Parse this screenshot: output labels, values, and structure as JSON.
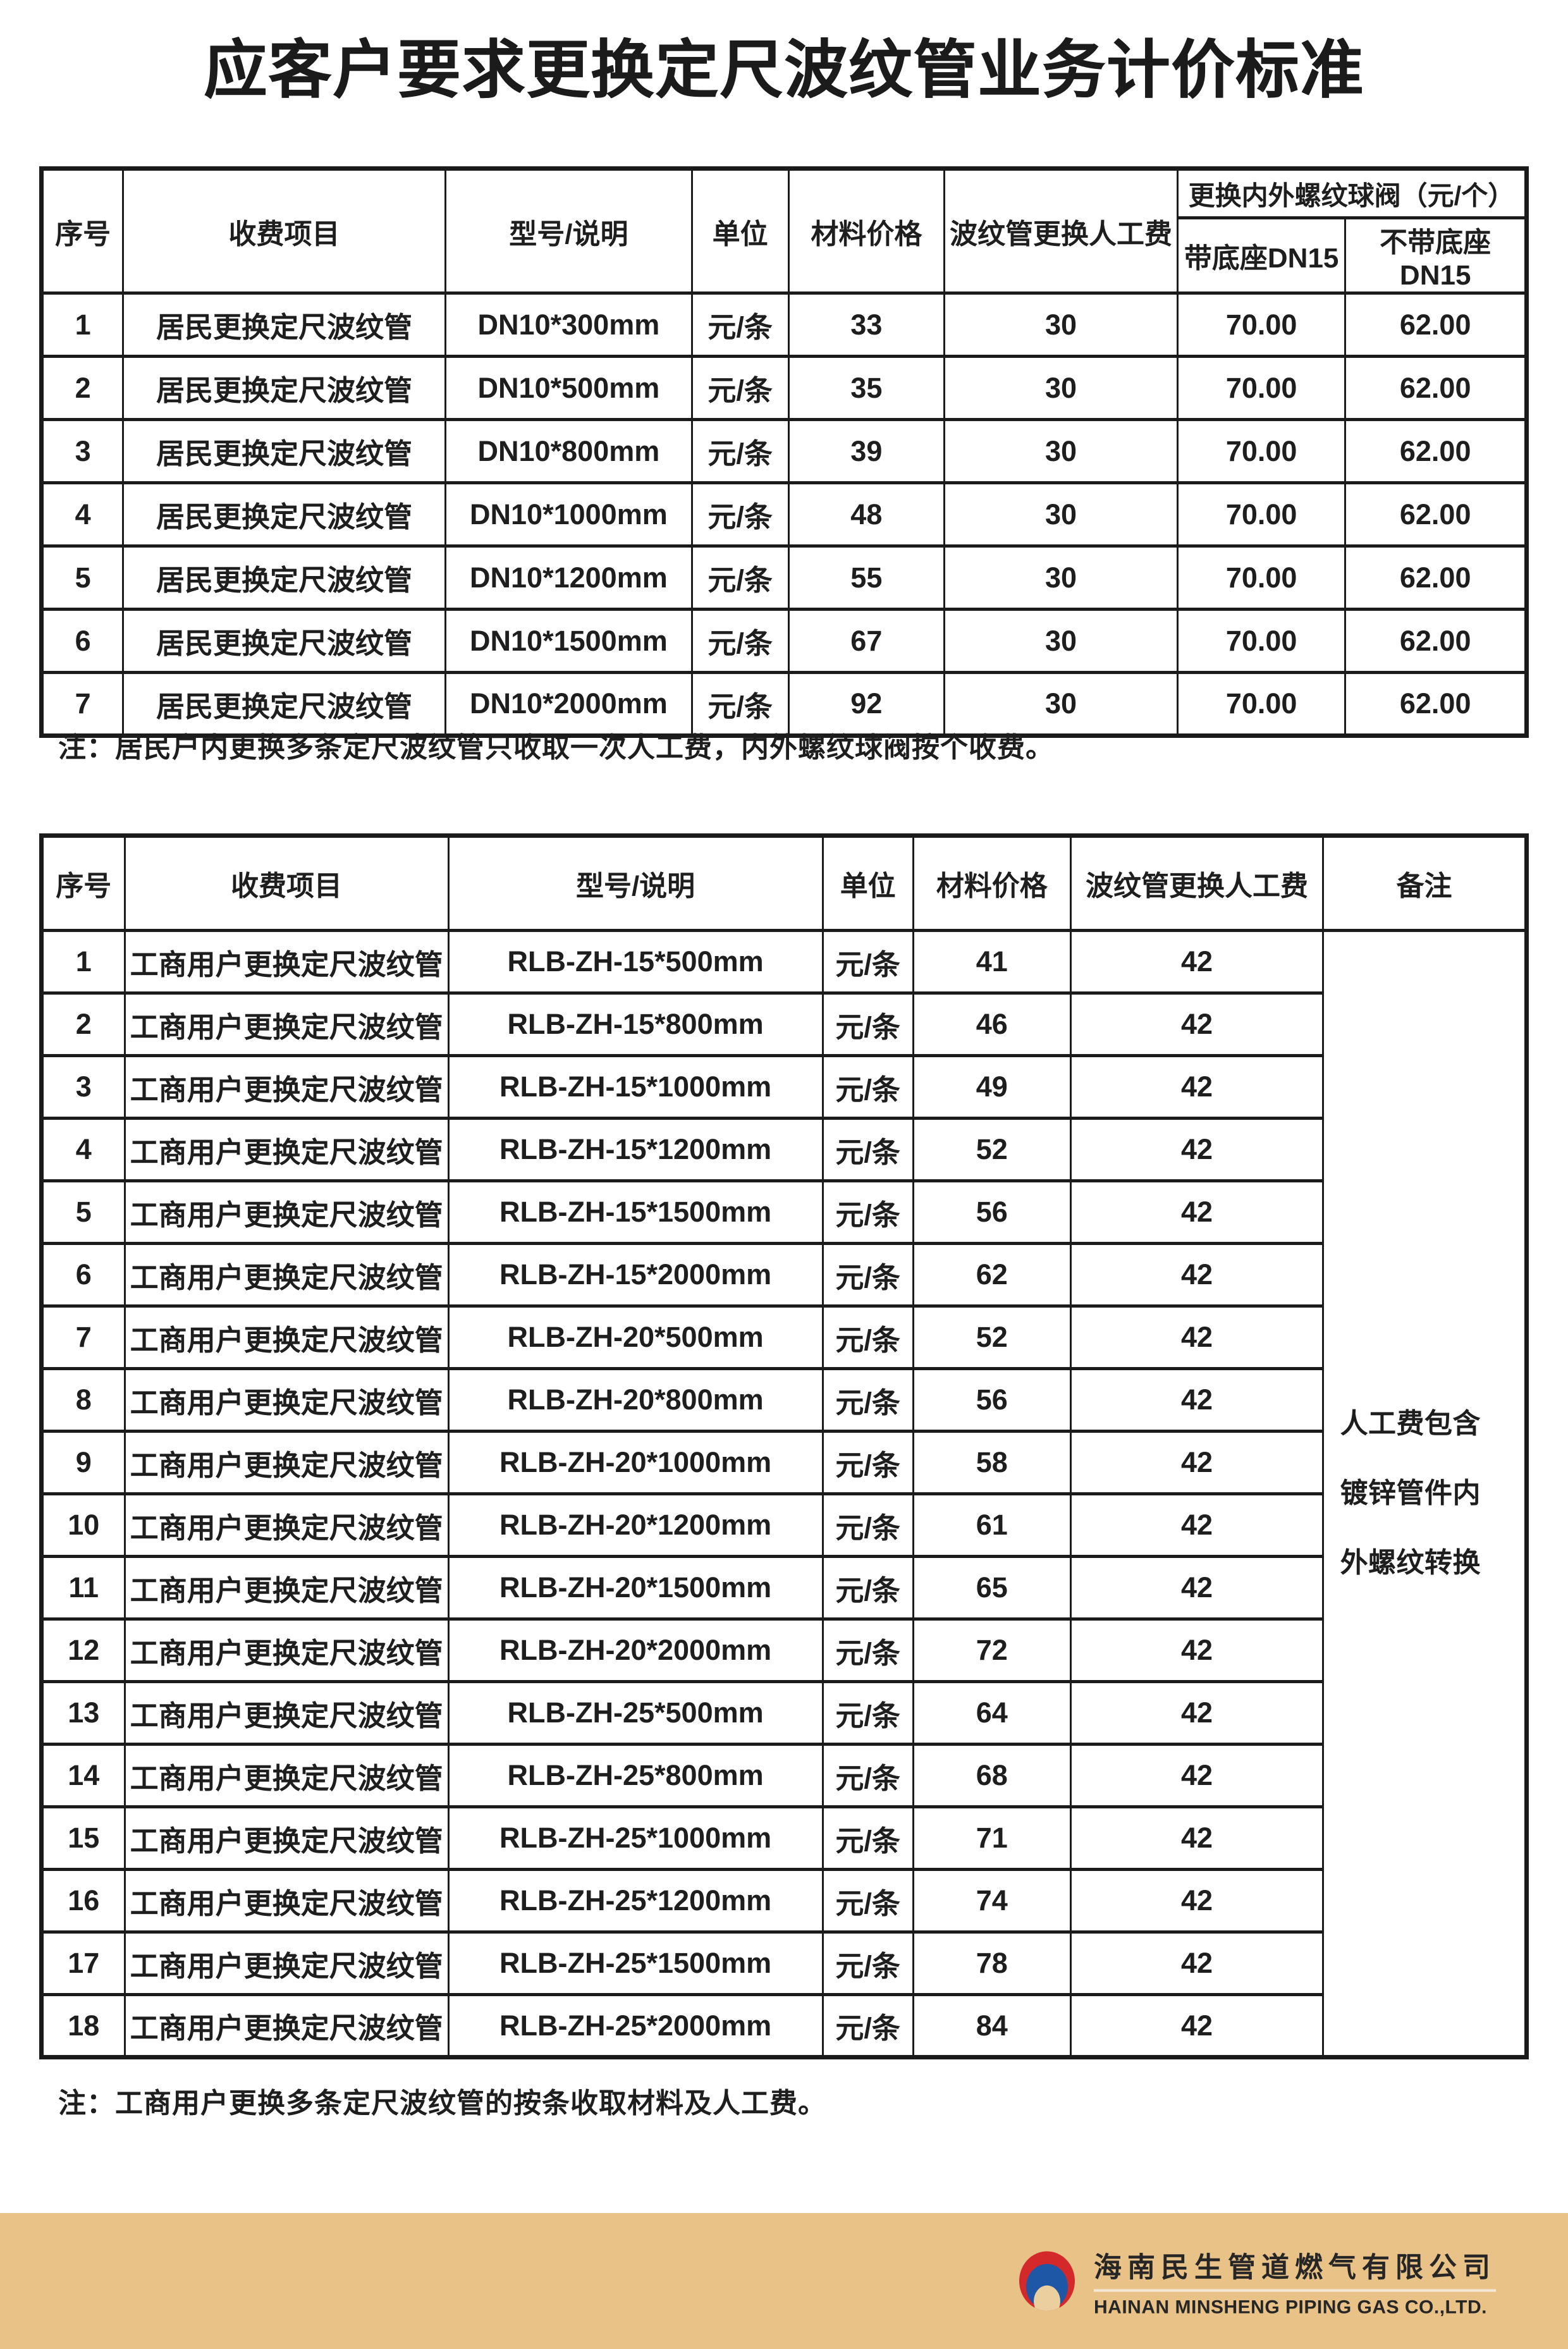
{
  "page": {
    "title": "应客户要求更换定尺波纹管业务计价标准",
    "note1": "注：居民户内更换多条定尺波纹管只收取一次人工费，内外螺纹球阀按个收费。",
    "note2": "注：工商用户更换多条定尺波纹管的按条收取材料及人工费。"
  },
  "table1": {
    "col_headers": [
      "序号",
      "收费项目",
      "型号/说明",
      "单位",
      "材料价格",
      "波纹管更换人工费"
    ],
    "group_header": "更换内外螺纹球阀（元/个）",
    "sub_headers": [
      "带底座DN15",
      "不带底座DN15"
    ],
    "rows": [
      [
        "1",
        "居民更换定尺波纹管",
        "DN10*300mm",
        "元/条",
        "33",
        "30",
        "70.00",
        "62.00"
      ],
      [
        "2",
        "居民更换定尺波纹管",
        "DN10*500mm",
        "元/条",
        "35",
        "30",
        "70.00",
        "62.00"
      ],
      [
        "3",
        "居民更换定尺波纹管",
        "DN10*800mm",
        "元/条",
        "39",
        "30",
        "70.00",
        "62.00"
      ],
      [
        "4",
        "居民更换定尺波纹管",
        "DN10*1000mm",
        "元/条",
        "48",
        "30",
        "70.00",
        "62.00"
      ],
      [
        "5",
        "居民更换定尺波纹管",
        "DN10*1200mm",
        "元/条",
        "55",
        "30",
        "70.00",
        "62.00"
      ],
      [
        "6",
        "居民更换定尺波纹管",
        "DN10*1500mm",
        "元/条",
        "67",
        "30",
        "70.00",
        "62.00"
      ],
      [
        "7",
        "居民更换定尺波纹管",
        "DN10*2000mm",
        "元/条",
        "92",
        "30",
        "70.00",
        "62.00"
      ]
    ]
  },
  "table2": {
    "col_headers": [
      "序号",
      "收费项目",
      "型号/说明",
      "单位",
      "材料价格",
      "波纹管更换人工费",
      "备注"
    ],
    "remark": "人工费包含镀锌管件内外螺纹转换",
    "rows": [
      [
        "1",
        "工商用户更换定尺波纹管",
        "RLB-ZH-15*500mm",
        "元/条",
        "41",
        "42"
      ],
      [
        "2",
        "工商用户更换定尺波纹管",
        "RLB-ZH-15*800mm",
        "元/条",
        "46",
        "42"
      ],
      [
        "3",
        "工商用户更换定尺波纹管",
        "RLB-ZH-15*1000mm",
        "元/条",
        "49",
        "42"
      ],
      [
        "4",
        "工商用户更换定尺波纹管",
        "RLB-ZH-15*1200mm",
        "元/条",
        "52",
        "42"
      ],
      [
        "5",
        "工商用户更换定尺波纹管",
        "RLB-ZH-15*1500mm",
        "元/条",
        "56",
        "42"
      ],
      [
        "6",
        "工商用户更换定尺波纹管",
        "RLB-ZH-15*2000mm",
        "元/条",
        "62",
        "42"
      ],
      [
        "7",
        "工商用户更换定尺波纹管",
        "RLB-ZH-20*500mm",
        "元/条",
        "52",
        "42"
      ],
      [
        "8",
        "工商用户更换定尺波纹管",
        "RLB-ZH-20*800mm",
        "元/条",
        "56",
        "42"
      ],
      [
        "9",
        "工商用户更换定尺波纹管",
        "RLB-ZH-20*1000mm",
        "元/条",
        "58",
        "42"
      ],
      [
        "10",
        "工商用户更换定尺波纹管",
        "RLB-ZH-20*1200mm",
        "元/条",
        "61",
        "42"
      ],
      [
        "11",
        "工商用户更换定尺波纹管",
        "RLB-ZH-20*1500mm",
        "元/条",
        "65",
        "42"
      ],
      [
        "12",
        "工商用户更换定尺波纹管",
        "RLB-ZH-20*2000mm",
        "元/条",
        "72",
        "42"
      ],
      [
        "13",
        "工商用户更换定尺波纹管",
        "RLB-ZH-25*500mm",
        "元/条",
        "64",
        "42"
      ],
      [
        "14",
        "工商用户更换定尺波纹管",
        "RLB-ZH-25*800mm",
        "元/条",
        "68",
        "42"
      ],
      [
        "15",
        "工商用户更换定尺波纹管",
        "RLB-ZH-25*1000mm",
        "元/条",
        "71",
        "42"
      ],
      [
        "16",
        "工商用户更换定尺波纹管",
        "RLB-ZH-25*1200mm",
        "元/条",
        "74",
        "42"
      ],
      [
        "17",
        "工商用户更换定尺波纹管",
        "RLB-ZH-25*1500mm",
        "元/条",
        "78",
        "42"
      ],
      [
        "18",
        "工商用户更换定尺波纹管",
        "RLB-ZH-25*2000mm",
        "元/条",
        "84",
        "42"
      ]
    ]
  },
  "footer": {
    "company_cn": "海南民生管道燃气有限公司",
    "company_en": "HAINAN MINSHENG PIPING GAS CO.,LTD."
  },
  "colors": {
    "text": "#1e1e1e",
    "table_border": "#1b1b1b",
    "footer_band": "#e8c287",
    "logo_red": "#d4292b",
    "logo_blue": "#1e57a5",
    "logo_inner": "#eccf9f",
    "divider_line": "#f2ead8"
  }
}
